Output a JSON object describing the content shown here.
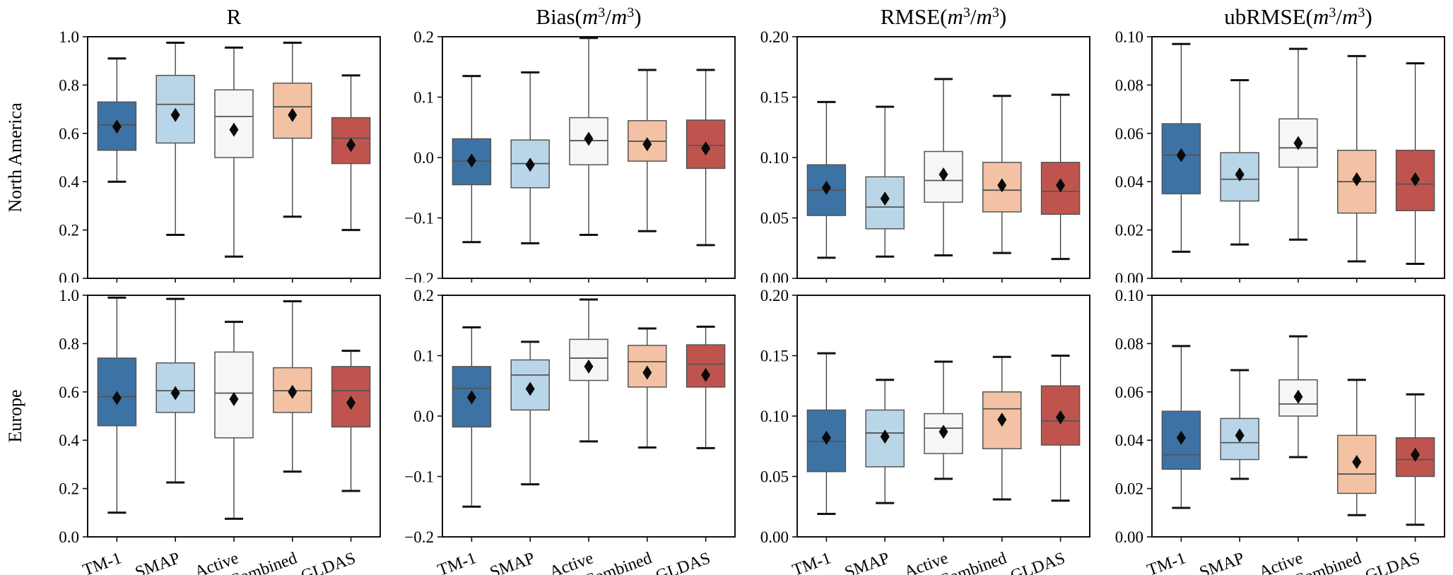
{
  "figure": {
    "row_labels": [
      "North America",
      "Europe"
    ]
  },
  "chart_data": {
    "type": "boxplot-grid",
    "grid": {
      "rows": 2,
      "cols": 4
    },
    "rows": [
      "North America",
      "Europe"
    ],
    "categories": [
      "TM-1",
      "SMAP",
      "Active",
      "Combined",
      "GLDAS"
    ],
    "box_colors": [
      "#3d73a4",
      "#b9d6e8",
      "#f6f6f5",
      "#f3c2a5",
      "#bf544e"
    ],
    "box_edge_color": "#555555",
    "whisker_color": "#3a3a3a",
    "cap_color": "#111111",
    "median_color": "#555555",
    "mean_marker": "diamond",
    "mean_marker_color": "#0a0a0a",
    "legend": "none",
    "grid_lines": "off",
    "columns": [
      {
        "title": "R",
        "unit": "",
        "ylim": [
          0.0,
          1.0
        ],
        "tick_values": [
          0.0,
          0.2,
          0.4,
          0.6,
          0.8,
          1.0
        ],
        "tick_labels": [
          "0.0",
          "0.2",
          "0.4",
          "0.6",
          "0.8",
          "1.0"
        ]
      },
      {
        "title": "Bias",
        "unit": "m3/m3",
        "ylim": [
          -0.2,
          0.2
        ],
        "tick_values": [
          -0.2,
          -0.1,
          0.0,
          0.1,
          0.2
        ],
        "tick_labels": [
          "−0.2",
          "−0.1",
          "0.0",
          "0.1",
          "0.2"
        ]
      },
      {
        "title": "RMSE",
        "unit": "m3/m3",
        "ylim": [
          0.0,
          0.2
        ],
        "tick_values": [
          0.0,
          0.05,
          0.1,
          0.15,
          0.2
        ],
        "tick_labels": [
          "0.00",
          "0.05",
          "0.10",
          "0.15",
          "0.20"
        ]
      },
      {
        "title": "ubRMSE",
        "unit": "m3/m3",
        "ylim": [
          0.0,
          0.1
        ],
        "tick_values": [
          0.0,
          0.02,
          0.04,
          0.06,
          0.08,
          0.1
        ],
        "tick_labels": [
          "0.00",
          "0.02",
          "0.04",
          "0.06",
          "0.08",
          "0.10"
        ]
      }
    ],
    "cells": [
      [
        {
          "boxes": [
            {
              "whislo": 0.4,
              "q1": 0.53,
              "med": 0.635,
              "mean": 0.628,
              "q3": 0.73,
              "whishi": 0.91
            },
            {
              "whislo": 0.18,
              "q1": 0.56,
              "med": 0.72,
              "mean": 0.676,
              "q3": 0.84,
              "whishi": 0.975
            },
            {
              "whislo": 0.09,
              "q1": 0.5,
              "med": 0.67,
              "mean": 0.615,
              "q3": 0.78,
              "whishi": 0.955
            },
            {
              "whislo": 0.255,
              "q1": 0.58,
              "med": 0.71,
              "mean": 0.676,
              "q3": 0.808,
              "whishi": 0.975
            },
            {
              "whislo": 0.2,
              "q1": 0.475,
              "med": 0.58,
              "mean": 0.552,
              "q3": 0.665,
              "whishi": 0.84
            }
          ]
        },
        {
          "boxes": [
            {
              "whislo": -0.14,
              "q1": -0.045,
              "med": -0.006,
              "mean": -0.005,
              "q3": 0.031,
              "whishi": 0.135
            },
            {
              "whislo": -0.142,
              "q1": -0.05,
              "med": -0.01,
              "mean": -0.012,
              "q3": 0.029,
              "whishi": 0.141
            },
            {
              "whislo": -0.128,
              "q1": -0.012,
              "med": 0.028,
              "mean": 0.031,
              "q3": 0.066,
              "whishi": 0.198
            },
            {
              "whislo": -0.122,
              "q1": -0.006,
              "med": 0.027,
              "mean": 0.022,
              "q3": 0.061,
              "whishi": 0.145
            },
            {
              "whislo": -0.145,
              "q1": -0.018,
              "med": 0.02,
              "mean": 0.015,
              "q3": 0.062,
              "whishi": 0.145
            }
          ]
        },
        {
          "boxes": [
            {
              "whislo": 0.017,
              "q1": 0.052,
              "med": 0.073,
              "mean": 0.075,
              "q3": 0.094,
              "whishi": 0.146
            },
            {
              "whislo": 0.018,
              "q1": 0.041,
              "med": 0.059,
              "mean": 0.066,
              "q3": 0.084,
              "whishi": 0.142
            },
            {
              "whislo": 0.019,
              "q1": 0.063,
              "med": 0.081,
              "mean": 0.086,
              "q3": 0.105,
              "whishi": 0.165
            },
            {
              "whislo": 0.021,
              "q1": 0.055,
              "med": 0.073,
              "mean": 0.077,
              "q3": 0.096,
              "whishi": 0.151
            },
            {
              "whislo": 0.016,
              "q1": 0.053,
              "med": 0.072,
              "mean": 0.077,
              "q3": 0.096,
              "whishi": 0.152
            }
          ]
        },
        {
          "boxes": [
            {
              "whislo": 0.011,
              "q1": 0.035,
              "med": 0.051,
              "mean": 0.051,
              "q3": 0.064,
              "whishi": 0.097
            },
            {
              "whislo": 0.014,
              "q1": 0.032,
              "med": 0.041,
              "mean": 0.043,
              "q3": 0.052,
              "whishi": 0.082
            },
            {
              "whislo": 0.016,
              "q1": 0.046,
              "med": 0.054,
              "mean": 0.056,
              "q3": 0.066,
              "whishi": 0.095
            },
            {
              "whislo": 0.007,
              "q1": 0.027,
              "med": 0.04,
              "mean": 0.041,
              "q3": 0.053,
              "whishi": 0.092
            },
            {
              "whislo": 0.006,
              "q1": 0.028,
              "med": 0.039,
              "mean": 0.041,
              "q3": 0.053,
              "whishi": 0.089
            }
          ]
        }
      ],
      [
        {
          "boxes": [
            {
              "whislo": 0.1,
              "q1": 0.46,
              "med": 0.58,
              "mean": 0.575,
              "q3": 0.74,
              "whishi": 0.99
            },
            {
              "whislo": 0.225,
              "q1": 0.515,
              "med": 0.605,
              "mean": 0.595,
              "q3": 0.72,
              "whishi": 0.985
            },
            {
              "whislo": 0.075,
              "q1": 0.41,
              "med": 0.595,
              "mean": 0.57,
              "q3": 0.765,
              "whishi": 0.89
            },
            {
              "whislo": 0.27,
              "q1": 0.515,
              "med": 0.605,
              "mean": 0.6,
              "q3": 0.7,
              "whishi": 0.975
            },
            {
              "whislo": 0.19,
              "q1": 0.455,
              "med": 0.605,
              "mean": 0.555,
              "q3": 0.705,
              "whishi": 0.77
            }
          ]
        },
        {
          "boxes": [
            {
              "whislo": -0.15,
              "q1": -0.018,
              "med": 0.046,
              "mean": 0.031,
              "q3": 0.082,
              "whishi": 0.147
            },
            {
              "whislo": -0.113,
              "q1": 0.01,
              "med": 0.068,
              "mean": 0.045,
              "q3": 0.093,
              "whishi": 0.123
            },
            {
              "whislo": -0.042,
              "q1": 0.059,
              "med": 0.096,
              "mean": 0.082,
              "q3": 0.127,
              "whishi": 0.193
            },
            {
              "whislo": -0.052,
              "q1": 0.048,
              "med": 0.09,
              "mean": 0.072,
              "q3": 0.117,
              "whishi": 0.145
            },
            {
              "whislo": -0.053,
              "q1": 0.048,
              "med": 0.086,
              "mean": 0.068,
              "q3": 0.118,
              "whishi": 0.148
            }
          ]
        },
        {
          "boxes": [
            {
              "whislo": 0.019,
              "q1": 0.054,
              "med": 0.079,
              "mean": 0.082,
              "q3": 0.105,
              "whishi": 0.152
            },
            {
              "whislo": 0.028,
              "q1": 0.058,
              "med": 0.086,
              "mean": 0.083,
              "q3": 0.105,
              "whishi": 0.13
            },
            {
              "whislo": 0.048,
              "q1": 0.069,
              "med": 0.09,
              "mean": 0.087,
              "q3": 0.102,
              "whishi": 0.145
            },
            {
              "whislo": 0.031,
              "q1": 0.073,
              "med": 0.106,
              "mean": 0.097,
              "q3": 0.12,
              "whishi": 0.149
            },
            {
              "whislo": 0.03,
              "q1": 0.076,
              "med": 0.096,
              "mean": 0.099,
              "q3": 0.125,
              "whishi": 0.15
            }
          ]
        },
        {
          "boxes": [
            {
              "whislo": 0.012,
              "q1": 0.028,
              "med": 0.034,
              "mean": 0.041,
              "q3": 0.052,
              "whishi": 0.079
            },
            {
              "whislo": 0.024,
              "q1": 0.032,
              "med": 0.039,
              "mean": 0.042,
              "q3": 0.049,
              "whishi": 0.069
            },
            {
              "whislo": 0.033,
              "q1": 0.05,
              "med": 0.055,
              "mean": 0.058,
              "q3": 0.065,
              "whishi": 0.083
            },
            {
              "whislo": 0.009,
              "q1": 0.018,
              "med": 0.026,
              "mean": 0.031,
              "q3": 0.042,
              "whishi": 0.065
            },
            {
              "whislo": 0.005,
              "q1": 0.025,
              "med": 0.032,
              "mean": 0.034,
              "q3": 0.041,
              "whishi": 0.059
            }
          ]
        }
      ]
    ]
  }
}
